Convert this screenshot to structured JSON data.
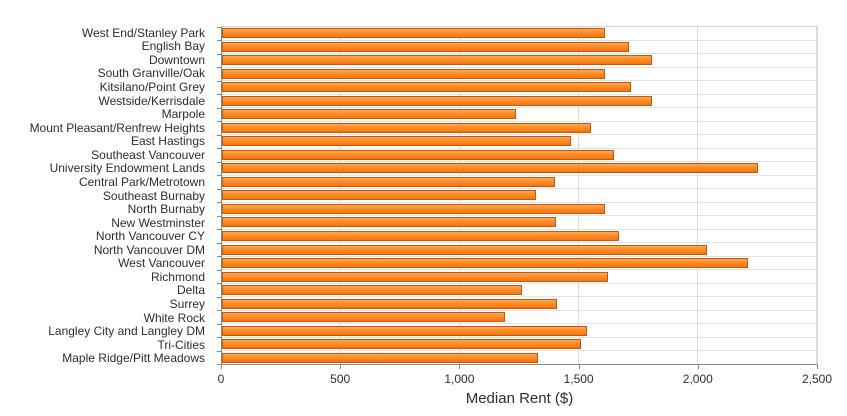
{
  "chart_data": {
    "type": "bar",
    "orientation": "horizontal",
    "title": "",
    "xlabel": "Median Rent ($)",
    "ylabel": "",
    "xlim": [
      0,
      2500
    ],
    "x_ticks": [
      0,
      500,
      1000,
      1500,
      2000,
      2500
    ],
    "x_tick_labels": [
      "0",
      "500",
      "1,000",
      "1,500",
      "2,000",
      "2,500"
    ],
    "grid": "vertical gridlines at every 500; light horizontal gridline at each category boundary",
    "legend": "none",
    "bar_fill_color": "#fb8c28",
    "bar_gradient_top": "#ffa851",
    "bar_gradient_bottom": "#f3770e",
    "bar_border_color": "#c2590f",
    "axis_color": "#878787",
    "gridline_color": "#dcdcdc",
    "categories": [
      "West End/Stanley Park",
      "English Bay",
      "Downtown",
      "South Granville/Oak",
      "Kitsilano/Point Grey",
      "Westside/Kerrisdale",
      "Marpole",
      "Mount Pleasant/Renfrew Heights",
      "East Hastings",
      "Southeast Vancouver",
      "University Endowment Lands",
      "Central Park/Metrotown",
      "Southeast Burnaby",
      "North Burnaby",
      "New Westminster",
      "North Vancouver CY",
      "North Vancouver DM",
      "West Vancouver",
      "Richmond",
      "Delta",
      "Surrey",
      "White Rock",
      "Langley City and Langley DM",
      "Tri-Cities",
      "Maple Ridge/Pitt Meadows"
    ],
    "values": [
      1600,
      1700,
      1800,
      1600,
      1710,
      1800,
      1225,
      1540,
      1460,
      1640,
      2245,
      1390,
      1310,
      1600,
      1395,
      1660,
      2030,
      2200,
      1615,
      1250,
      1400,
      1180,
      1525,
      1500,
      1320
    ]
  }
}
